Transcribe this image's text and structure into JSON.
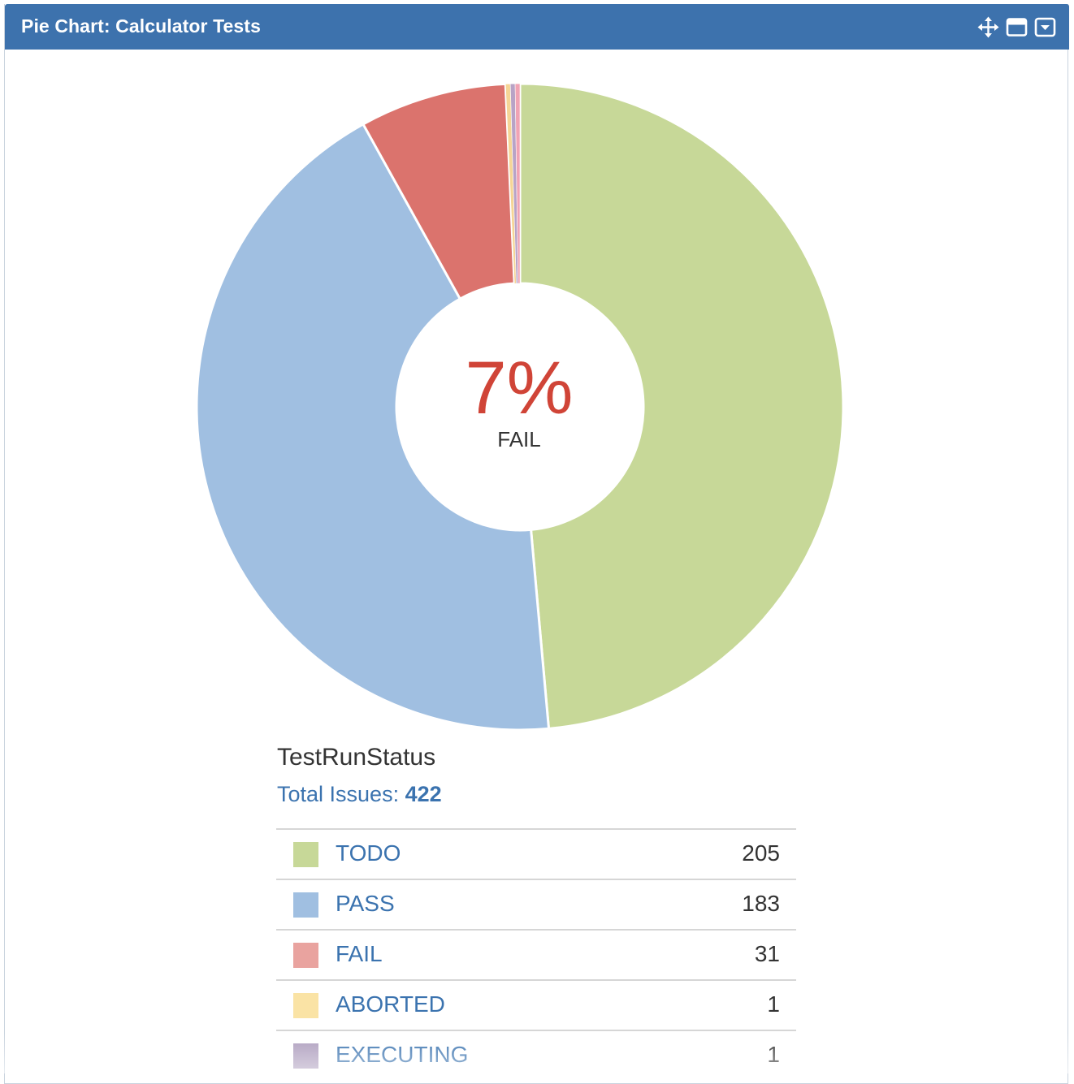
{
  "gadget": {
    "title": "Pie Chart: Calculator Tests",
    "header_color": "#3d72ad",
    "icons": [
      "move-icon",
      "maximize-icon",
      "dropdown-menu-icon"
    ]
  },
  "center": {
    "percent": "7%",
    "label": "FAIL",
    "color": "#d04437"
  },
  "summary": {
    "statistic_type": "TestRunStatus",
    "total_label": "Total Issues:",
    "total_value": "422"
  },
  "chart_data": {
    "type": "pie",
    "donut": true,
    "total": 422,
    "slices": [
      {
        "label": "TODO",
        "value": 205,
        "color": "#c7d898",
        "legend_color": "#c7d898"
      },
      {
        "label": "PASS",
        "value": 183,
        "color": "#a0bfe1",
        "legend_color": "#a0bfe1"
      },
      {
        "label": "FAIL",
        "value": 31,
        "color": "#db736d",
        "legend_color": "#e9a39f"
      },
      {
        "label": "ABORTED",
        "value": 1,
        "color": "#f5d596",
        "legend_color": "#fae3a5"
      },
      {
        "label": "EXECUTING",
        "value": 1,
        "color": "#b8a3c6",
        "legend_color": "#ad9dbd"
      },
      {
        "label": "",
        "value": 1,
        "color": "#f0a3b4",
        "legend_color": "#f0a3b4"
      }
    ]
  }
}
